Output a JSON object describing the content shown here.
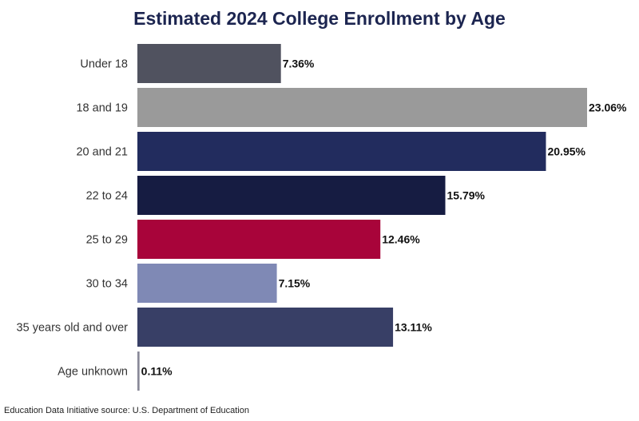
{
  "chart_data": {
    "type": "bar",
    "orientation": "horizontal",
    "title": "Estimated 2024 College Enrollment by Age",
    "xlabel": "",
    "ylabel": "",
    "unit": "%",
    "grid": false,
    "categories": [
      "Under 18",
      "18 and 19",
      "20 and 21",
      "22 to 24",
      "25 to 29",
      "30 to 34",
      "35 years old and over",
      "Age unknown"
    ],
    "values": [
      7.36,
      23.06,
      20.95,
      15.79,
      12.46,
      7.15,
      13.11,
      0.11
    ],
    "value_labels": [
      "7.36%",
      "23.06%",
      "20.95%",
      "15.79%",
      "12.46%",
      "7.15%",
      "13.11%",
      "0.11%"
    ],
    "colors": [
      "#50525f",
      "#9a9a9a",
      "#222c5e",
      "#161c42",
      "#a8043a",
      "#7f89b5",
      "#383f66",
      "#8a8a99"
    ],
    "xlim": [
      0,
      23.06
    ]
  },
  "footer": {
    "source": "Education Data Initiative source: U.S. Department of Education"
  }
}
